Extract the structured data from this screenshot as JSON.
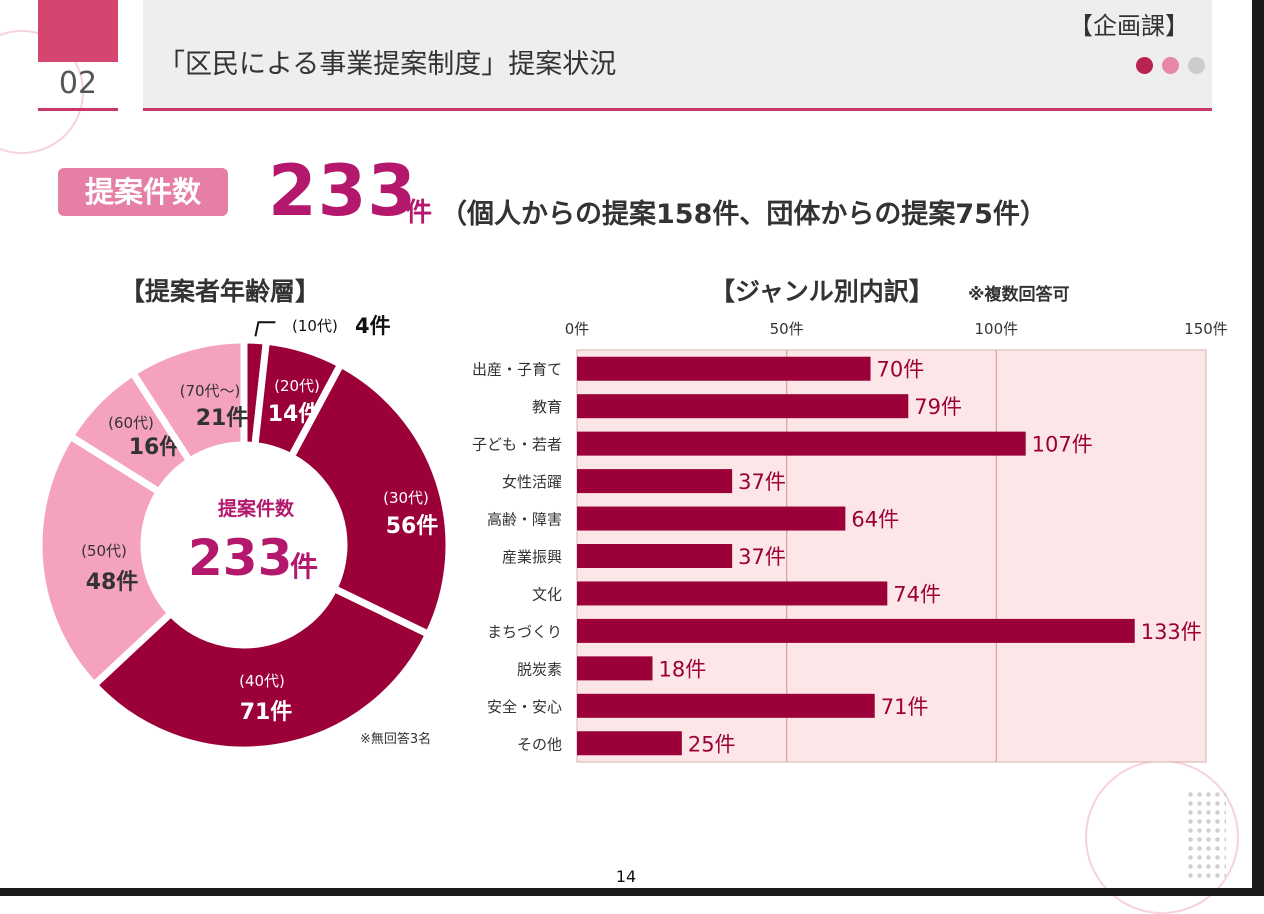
{
  "header": {
    "section_number": "02",
    "title": "「区民による事業提案制度」提案状況",
    "department": "【企画課】"
  },
  "summary": {
    "badge_label": "提案件数",
    "total_value": "233",
    "total_unit": "件",
    "breakdown_text": "（個人からの提案158件、団体からの提案75件）"
  },
  "colors": {
    "accent": "#b3186c",
    "dark_slice": "#9b0038",
    "light_slice": "#f5a3bd",
    "bar": "#9b0038",
    "bar_plot_bg": "#fce6e8",
    "badge": "#e67fa5",
    "dots": [
      "#b8234f",
      "#e888a8",
      "#cccccc"
    ]
  },
  "chart_data": [
    {
      "type": "pie",
      "title": "【提案者年齢層】",
      "center_label": "提案件数",
      "center_value": "233",
      "center_unit": "件",
      "note": "※無回答3名",
      "slices": [
        {
          "label": "(10代)",
          "value": 4,
          "value_label": "4件",
          "tone": "dark"
        },
        {
          "label": "(20代)",
          "value": 14,
          "value_label": "14件",
          "tone": "dark"
        },
        {
          "label": "(30代)",
          "value": 56,
          "value_label": "56件",
          "tone": "dark"
        },
        {
          "label": "(40代)",
          "value": 71,
          "value_label": "71件",
          "tone": "dark"
        },
        {
          "label": "(50代)",
          "value": 48,
          "value_label": "48件",
          "tone": "light"
        },
        {
          "label": "(60代)",
          "value": 16,
          "value_label": "16件",
          "tone": "light"
        },
        {
          "label": "(70代～)",
          "value": 21,
          "value_label": "21件",
          "tone": "light"
        }
      ]
    },
    {
      "type": "bar",
      "orientation": "horizontal",
      "title": "【ジャンル別内訳】",
      "note": "※複数回答可",
      "xlim": [
        0,
        150
      ],
      "ticks": [
        0,
        50,
        100,
        150
      ],
      "tick_labels": [
        "0件",
        "50件",
        "100件",
        "150件"
      ],
      "unit": "件",
      "categories": [
        "出産・子育て",
        "教育",
        "子ども・若者",
        "女性活躍",
        "高齢・障害",
        "産業振興",
        "文化",
        "まちづくり",
        "脱炭素",
        "安全・安心",
        "その他"
      ],
      "values": [
        70,
        79,
        107,
        37,
        64,
        37,
        74,
        133,
        18,
        71,
        25
      ],
      "value_labels": [
        "70件",
        "79件",
        "107件",
        "37件",
        "64件",
        "37件",
        "74件",
        "133件",
        "18件",
        "71件",
        "25件"
      ]
    }
  ],
  "footer": {
    "page_number": "14"
  }
}
